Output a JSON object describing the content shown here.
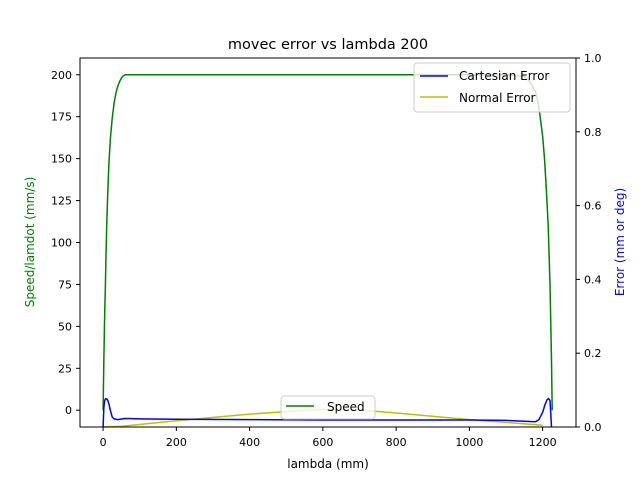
{
  "chart_data": {
    "type": "line",
    "title": "movec error vs lambda 200",
    "xlabel": "lambda (mm)",
    "ylabel_left": "Speed/lamdot (mm/s)",
    "ylabel_right": "Error (mm or deg)",
    "xlim": [
      -63,
      1291
    ],
    "ylim_left": [
      -10,
      210
    ],
    "ylim_right": [
      0,
      1
    ],
    "x_ticks": [
      "0",
      "200",
      "400",
      "600",
      "800",
      "1000",
      "1200"
    ],
    "y_left_ticks": [
      "0",
      "25",
      "50",
      "75",
      "100",
      "125",
      "150",
      "175",
      "200"
    ],
    "y_right_ticks": [
      "0.0",
      "0.2",
      "0.4",
      "0.6",
      "0.8",
      "1.0"
    ],
    "grid": false,
    "legend_upper": {
      "placement": "top-right",
      "entries": [
        "Cartesian Error",
        "Normal Error"
      ]
    },
    "legend_lower": {
      "placement": "bottom-center",
      "entries": [
        "Speed"
      ]
    },
    "colors": {
      "speed": "#008000",
      "cartesian": "#0000ff",
      "normal": "#bfbf00"
    },
    "series": [
      {
        "name": "Speed",
        "axis": "left",
        "x": [
          0,
          2,
          4,
          6,
          8,
          10,
          13,
          16,
          20,
          25,
          30,
          35,
          40,
          45,
          50,
          55,
          60,
          65,
          70,
          100,
          300,
          600,
          900,
          1100,
          1150,
          1160,
          1170,
          1180,
          1185,
          1190,
          1195,
          1200,
          1205,
          1210,
          1215,
          1220,
          1224,
          1226
        ],
        "values": [
          0,
          28,
          52,
          72,
          92,
          110,
          130,
          147,
          162,
          174,
          183,
          189,
          193,
          196,
          198,
          199.3,
          200,
          200,
          200,
          200,
          200,
          200,
          200,
          200,
          199,
          197,
          194,
          190,
          186,
          180,
          172,
          163,
          150,
          132,
          110,
          75,
          30,
          0
        ]
      },
      {
        "name": "Cartesian Error",
        "axis": "right",
        "x": [
          0,
          2,
          4,
          7,
          10,
          13,
          16,
          20,
          25,
          30,
          40,
          60,
          100,
          200,
          400,
          600,
          800,
          1000,
          1100,
          1180,
          1190,
          1200,
          1206,
          1212,
          1216,
          1220,
          1222,
          1224
        ],
        "values": [
          0.0,
          0.05,
          0.07,
          0.077,
          0.076,
          0.072,
          0.062,
          0.045,
          0.027,
          0.022,
          0.02,
          0.023,
          0.022,
          0.021,
          0.02,
          0.019,
          0.019,
          0.019,
          0.018,
          0.014,
          0.02,
          0.04,
          0.06,
          0.074,
          0.077,
          0.072,
          0.04,
          0.0
        ]
      },
      {
        "name": "Normal Error",
        "axis": "right",
        "x": [
          0,
          50,
          200,
          400,
          600,
          700,
          800,
          1000,
          1200
        ],
        "values": [
          0.0,
          0.002,
          0.017,
          0.035,
          0.048,
          0.046,
          0.038,
          0.02,
          0.005
        ]
      }
    ]
  }
}
